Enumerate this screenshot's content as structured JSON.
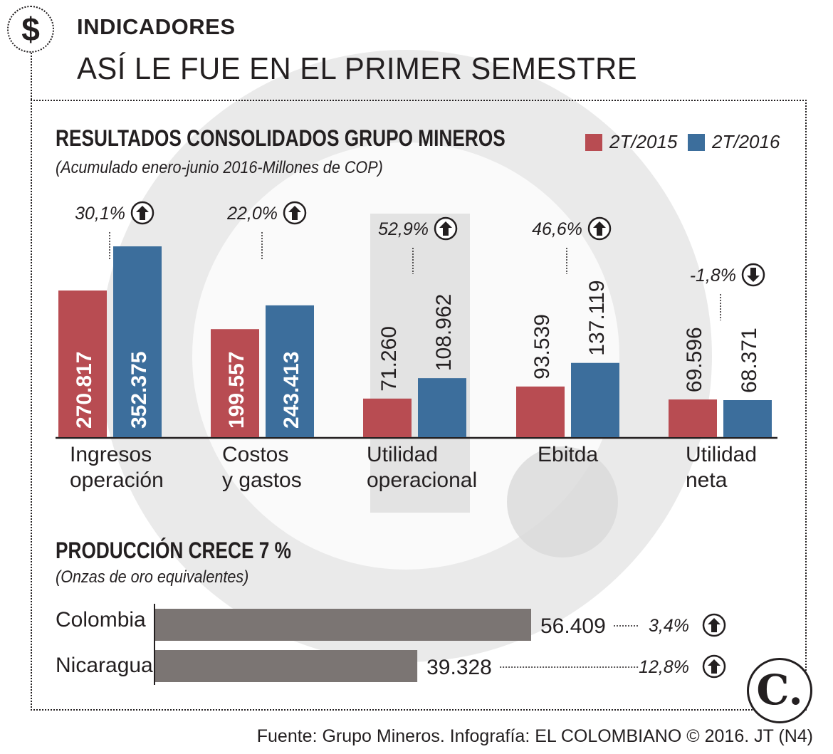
{
  "header": {
    "badge_symbol": "$",
    "kicker": "INDICADORES",
    "headline": "ASÍ LE FUE EN EL PRIMER SEMESTRE"
  },
  "colors": {
    "series_2015": "#b84c52",
    "series_2016": "#3c6e9c",
    "production_bar": "#7b7573",
    "watermark": "#d6d6d6",
    "ink": "#231f20"
  },
  "chart_data": [
    {
      "type": "bar",
      "title": "RESULTADOS CONSOLIDADOS GRUPO MINEROS",
      "subtitle": "(Acumulado enero-junio 2016-Millones de COP)",
      "categories": [
        [
          "Ingresos",
          "operación"
        ],
        [
          "Costos",
          "y gastos"
        ],
        [
          "Utilidad",
          "operacional"
        ],
        [
          "Ebitda"
        ],
        [
          "Utilidad",
          "neta"
        ]
      ],
      "series": [
        {
          "name": "2T/2015",
          "values": [
            270817,
            199557,
            71260,
            93539,
            69596
          ],
          "labels": [
            "270.817",
            "199.557",
            "71.260",
            "93.539",
            "69.596"
          ]
        },
        {
          "name": "2T/2016",
          "values": [
            352375,
            243413,
            108962,
            137119,
            68371
          ],
          "labels": [
            "352.375",
            "243.413",
            "108.962",
            "137.119",
            "68.371"
          ]
        }
      ],
      "changes": [
        {
          "label": "30,1%",
          "direction": "up"
        },
        {
          "label": "22,0%",
          "direction": "up"
        },
        {
          "label": "52,9%",
          "direction": "up"
        },
        {
          "label": "46,6%",
          "direction": "up"
        },
        {
          "label": "-1,8%",
          "direction": "down"
        }
      ],
      "ylim": [
        0,
        360000
      ],
      "legend": "top-right"
    },
    {
      "type": "bar",
      "orientation": "horizontal",
      "title": "PRODUCCIÓN CRECE 7 %",
      "subtitle": "(Onzas de oro equivalentes)",
      "categories": [
        "Colombia",
        "Nicaragua"
      ],
      "values": [
        56409,
        39328
      ],
      "labels": [
        "56.409",
        "39.328"
      ],
      "changes": [
        {
          "label": "3,4%",
          "direction": "up"
        },
        {
          "label": "12,8%",
          "direction": "up"
        }
      ],
      "xlim": [
        0,
        56409
      ]
    }
  ],
  "footer": {
    "source": "Fuente: Grupo Mineros. Infografía: EL COLOMBIANO © 2016. JT (N4)",
    "logo_text": "C."
  }
}
